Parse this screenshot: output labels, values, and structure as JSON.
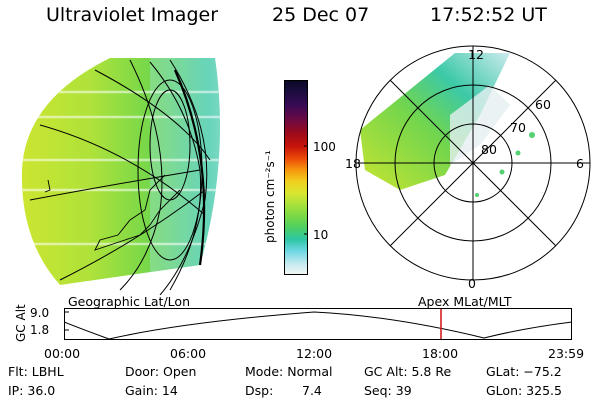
{
  "header": {
    "title": "Ultraviolet Imager",
    "date": "25 Dec 07",
    "time": "17:52:52 UT"
  },
  "left_panel": {
    "caption": "Geographic Lat/Lon"
  },
  "colorbar": {
    "unit_label": "photon cm⁻²s⁻¹",
    "scale": "log",
    "ticks": [
      "100",
      "10"
    ],
    "colors": [
      "#0a0a24",
      "#1c0c40",
      "#3a0b55",
      "#6b0a45",
      "#9c0a1c",
      "#c7140a",
      "#ea4808",
      "#f7950c",
      "#f1cf1f",
      "#d8e62f",
      "#a8e23b",
      "#78d946",
      "#4ccf62",
      "#2ec6a5",
      "#6fd7e4",
      "#bfe9ee",
      "#f4f7f7"
    ]
  },
  "right_panel": {
    "caption": "Apex MLat/MLT",
    "mlt_labels": {
      "top": "12",
      "bottom": "0",
      "left": "18",
      "right": "6"
    },
    "mlat_labels": [
      "60",
      "70",
      "80"
    ]
  },
  "altitude_strip": {
    "axis_label": "GC Alt",
    "y_ticks": [
      "9.0",
      "1.8"
    ],
    "x_ticks": [
      "00:00",
      "06:00",
      "12:00",
      "18:00",
      "23:59"
    ],
    "marker_color": "#d01010"
  },
  "status": {
    "row1": {
      "filter": "Flt: LBHL",
      "door": "Door: Open",
      "mode": "Mode: Normal",
      "gc_alt": "GC Alt: 5.8 Re",
      "glat": "GLat: −75.2"
    },
    "row2": {
      "ip": "IP: 36.0",
      "gain": "Gain: 14",
      "dsp_label": "Dsp:",
      "dsp_value": "7.4",
      "seq": "Seq: 39",
      "glon": "GLon: 325.5"
    }
  }
}
